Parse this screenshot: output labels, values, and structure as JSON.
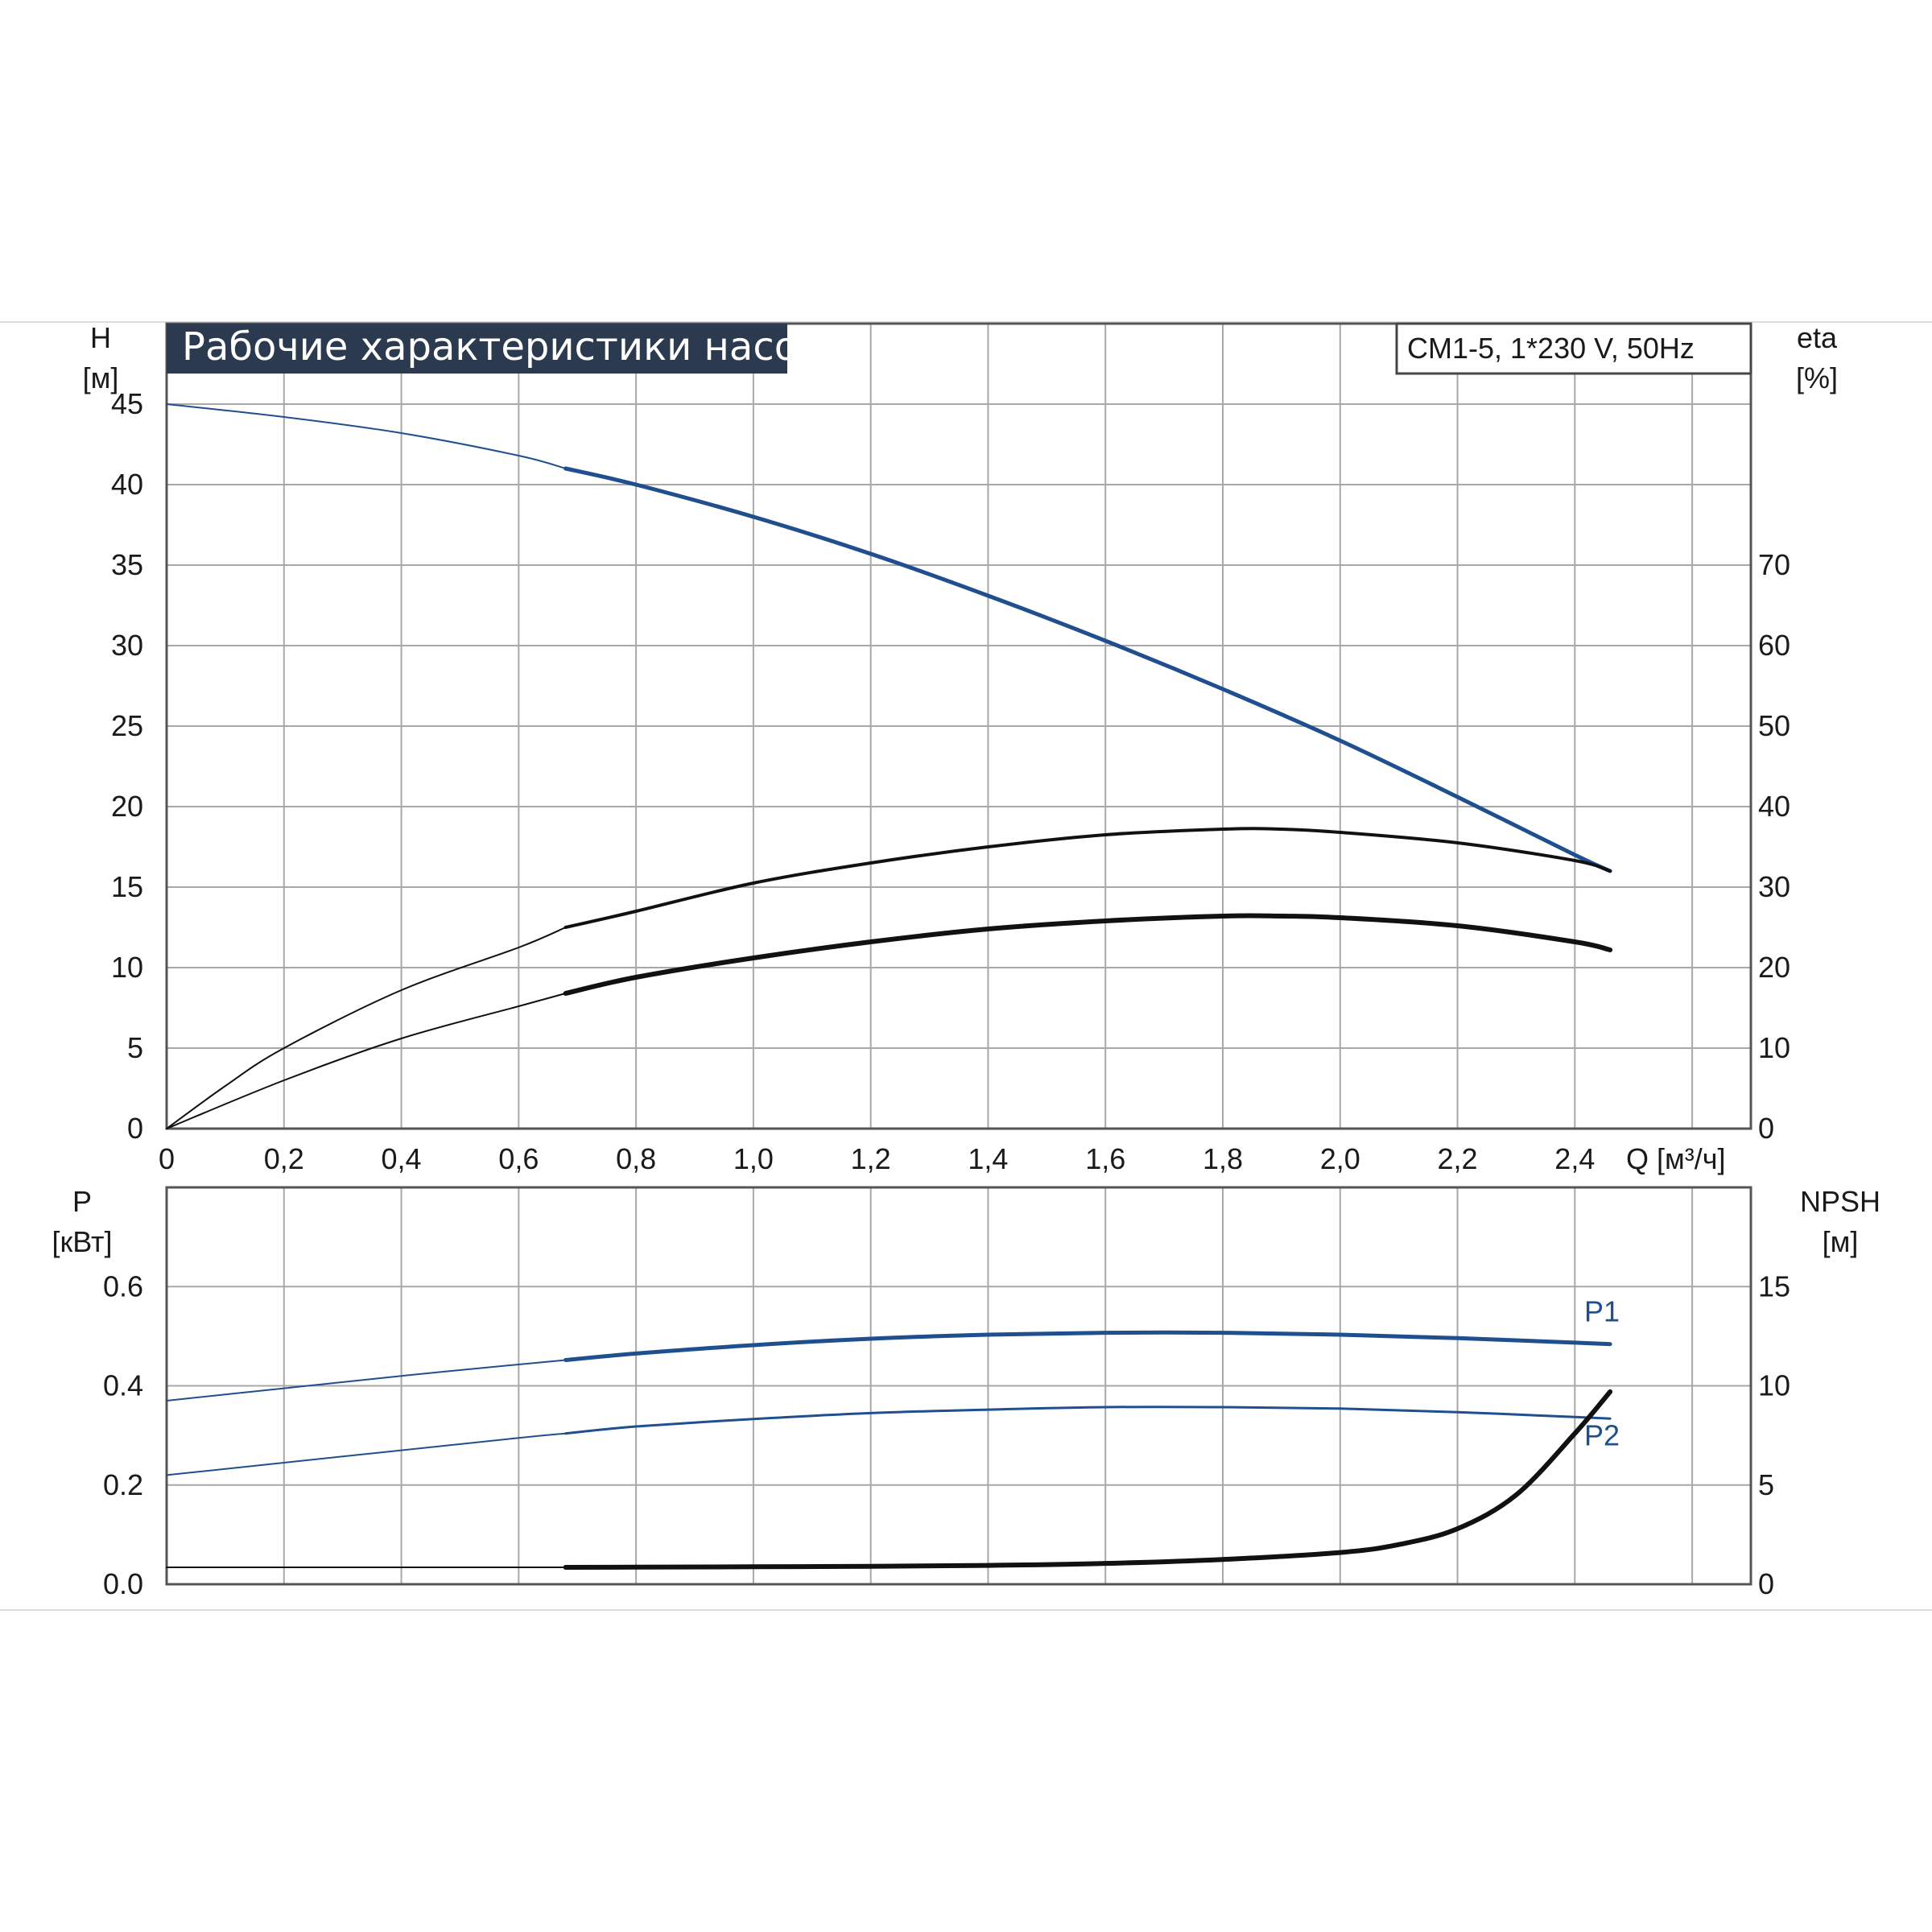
{
  "chart_data": [
    {
      "type": "line",
      "title": "Рабочие характеристики насоса",
      "subtitle": "CM1-5, 1*230 V, 50Hz",
      "xlabel": "Q [м³/ч]",
      "ylabel_left": [
        "H",
        "[м]"
      ],
      "ylabel_right": [
        "eta",
        "[%]"
      ],
      "xlim": [
        0,
        2.7
      ],
      "ylim_left": [
        0,
        50
      ],
      "ylim_right": [
        0,
        100
      ],
      "x_ticks": [
        "0",
        "0,2",
        "0,4",
        "0,6",
        "0,8",
        "1,0",
        "1,2",
        "1,4",
        "1,6",
        "1,8",
        "2,0",
        "2,2",
        "2,4"
      ],
      "y_left_ticks": [
        "0",
        "5",
        "10",
        "15",
        "20",
        "25",
        "30",
        "35",
        "40",
        "45"
      ],
      "y_right_ticks": [
        "0",
        "10",
        "20",
        "30",
        "40",
        "50",
        "60",
        "70"
      ],
      "grid": true,
      "series": [
        {
          "color": "#1f4f8e",
          "axis": "left",
          "x": [
            0,
            0.2,
            0.4,
            0.6,
            0.68,
            0.8,
            1.0,
            1.2,
            1.4,
            1.6,
            1.8,
            2.0,
            2.2,
            2.4,
            2.46
          ],
          "y": [
            45.0,
            44.2,
            43.2,
            41.8,
            41.0,
            40.0,
            38.0,
            35.7,
            33.1,
            30.3,
            27.3,
            24.1,
            20.6,
            17.0,
            16.0
          ]
        },
        {
          "color": "#111111",
          "axis": "right",
          "x": [
            0,
            0.1,
            0.2,
            0.4,
            0.6,
            0.68,
            0.8,
            1.0,
            1.2,
            1.4,
            1.6,
            1.8,
            1.9,
            2.0,
            2.2,
            2.4,
            2.46
          ],
          "y": [
            0,
            5.3,
            10.0,
            17.2,
            22.5,
            25.0,
            27.0,
            30.5,
            33.0,
            35.0,
            36.5,
            37.2,
            37.2,
            36.8,
            35.5,
            33.3,
            32.0
          ]
        },
        {
          "color": "#111111",
          "axis": "left",
          "x": [
            0,
            0.2,
            0.4,
            0.6,
            0.68,
            0.8,
            1.0,
            1.2,
            1.4,
            1.6,
            1.8,
            1.9,
            2.0,
            2.2,
            2.4,
            2.46
          ],
          "y": [
            0,
            3.0,
            5.6,
            7.6,
            8.4,
            9.4,
            10.6,
            11.6,
            12.4,
            12.9,
            13.2,
            13.2,
            13.1,
            12.6,
            11.6,
            11.1
          ]
        }
      ]
    },
    {
      "type": "line",
      "xlim": [
        0,
        2.7
      ],
      "ylabel_left": [
        "P",
        "[кВт]"
      ],
      "ylabel_right": [
        "NPSH",
        "[м]"
      ],
      "ylim_left": [
        0,
        0.8
      ],
      "ylim_right": [
        0,
        20
      ],
      "y_left_ticks": [
        "0.0",
        "0.2",
        "0.4",
        "0.6"
      ],
      "y_right_ticks": [
        "0",
        "5",
        "10",
        "15"
      ],
      "grid": true,
      "series": [
        {
          "name": "P1",
          "color": "#1f4f8e",
          "axis": "left",
          "x": [
            0,
            0.2,
            0.4,
            0.6,
            0.68,
            0.8,
            1.0,
            1.2,
            1.4,
            1.6,
            1.8,
            2.0,
            2.2,
            2.4,
            2.46
          ],
          "y": [
            0.37,
            0.395,
            0.42,
            0.443,
            0.452,
            0.465,
            0.482,
            0.495,
            0.503,
            0.507,
            0.507,
            0.503,
            0.496,
            0.487,
            0.484
          ]
        },
        {
          "name": "P2",
          "color": "#1f4f8e",
          "axis": "left",
          "x": [
            0,
            0.2,
            0.4,
            0.6,
            0.68,
            0.8,
            1.0,
            1.2,
            1.4,
            1.6,
            1.8,
            2.0,
            2.2,
            2.4,
            2.46
          ],
          "y": [
            0.22,
            0.245,
            0.27,
            0.295,
            0.304,
            0.318,
            0.333,
            0.345,
            0.352,
            0.357,
            0.357,
            0.354,
            0.347,
            0.337,
            0.334
          ]
        },
        {
          "color": "#111111",
          "axis": "right",
          "x": [
            0,
            0.68,
            0.8,
            1.0,
            1.2,
            1.4,
            1.6,
            1.8,
            2.0,
            2.1,
            2.2,
            2.3,
            2.4,
            2.46
          ],
          "y": [
            0.85,
            0.85,
            0.86,
            0.88,
            0.9,
            0.95,
            1.05,
            1.25,
            1.6,
            2.0,
            2.8,
            4.5,
            7.6,
            9.7
          ]
        }
      ]
    }
  ]
}
